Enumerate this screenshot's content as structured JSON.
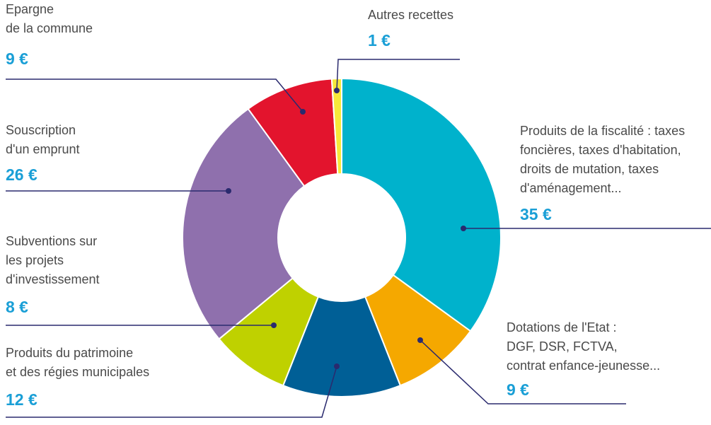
{
  "chart_data": {
    "type": "donut",
    "categories": [
      "Produits de la fiscalité : taxes\nfoncières, taxes d'habitation,\ndroits de mutation, taxes\nd'aménagement...",
      "Dotations de l'Etat :\nDGF, DSR, FCTVA,\ncontrat enfance-jeunesse...",
      "Produits du patrimoine\net des régies municipales",
      "Subventions sur\nles projets\nd'investissement",
      "Souscription\nd'un emprunt",
      "Epargne\nde la commune",
      "Autres recettes"
    ],
    "values": [
      35,
      9,
      12,
      8,
      26,
      9,
      1
    ],
    "value_labels": [
      "35 €",
      "9 €",
      "12 €",
      "8 €",
      "26 €",
      "9 €",
      "1 €"
    ],
    "colors": [
      "#00b2cc",
      "#f5a800",
      "#005f96",
      "#bfd100",
      "#8f70ad",
      "#e3142d",
      "#f7e83a"
    ]
  }
}
